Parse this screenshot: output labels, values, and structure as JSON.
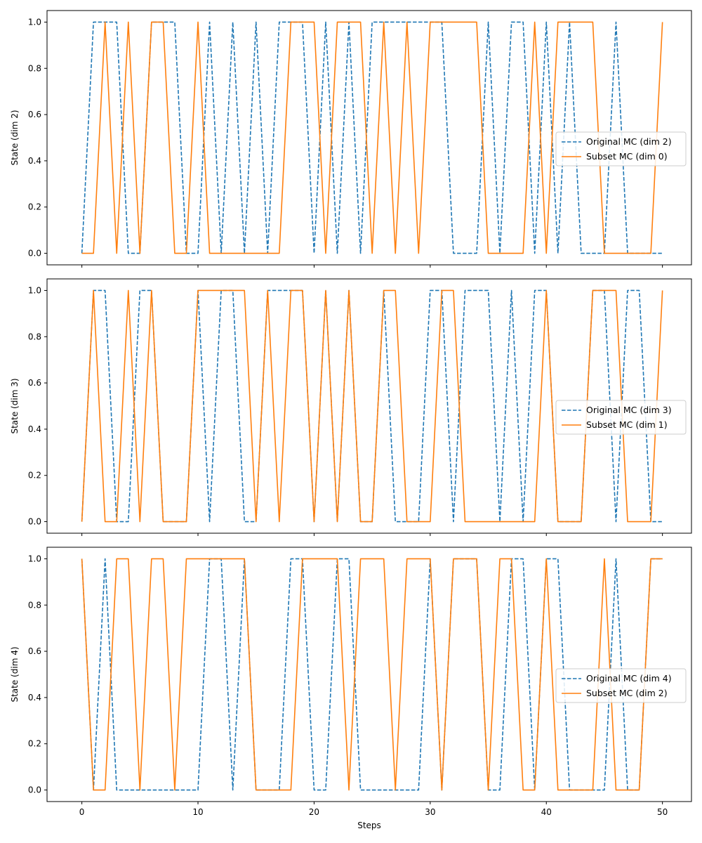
{
  "chart_data": [
    {
      "type": "line",
      "ylabel": "State (dim 2)",
      "xlabel": "",
      "xlim": [
        -3,
        52.5
      ],
      "ylim": [
        -0.05,
        1.05
      ],
      "xticks": [
        0,
        10,
        20,
        30,
        40,
        50
      ],
      "yticks": [
        0.0,
        0.2,
        0.4,
        0.6,
        0.8,
        1.0
      ],
      "ytick_labels": [
        "0.0",
        "0.2",
        "0.4",
        "0.6",
        "0.8",
        "1.0"
      ],
      "show_xtick_labels": false,
      "legend_position": "center-right",
      "x": [
        0,
        1,
        2,
        3,
        4,
        5,
        6,
        7,
        8,
        9,
        10,
        11,
        12,
        13,
        14,
        15,
        16,
        17,
        18,
        19,
        20,
        21,
        22,
        23,
        24,
        25,
        26,
        27,
        28,
        29,
        30,
        31,
        32,
        33,
        34,
        35,
        36,
        37,
        38,
        39,
        40,
        41,
        42,
        43,
        44,
        45,
        46,
        47,
        48,
        49,
        50
      ],
      "series": [
        {
          "name": "Original MC (dim 2)",
          "color": "#1f77b4",
          "style": "dashed",
          "values": [
            0,
            1,
            1,
            1,
            0,
            0,
            1,
            1,
            1,
            0,
            0,
            1,
            0,
            1,
            0,
            1,
            0,
            1,
            1,
            1,
            0,
            1,
            0,
            1,
            0,
            1,
            1,
            1,
            1,
            1,
            1,
            1,
            0,
            0,
            0,
            1,
            0,
            1,
            1,
            0,
            1,
            0,
            1,
            0,
            0,
            0,
            1,
            0,
            0,
            0,
            0
          ]
        },
        {
          "name": "Subset MC (dim 0)",
          "color": "#ff7f0e",
          "style": "solid",
          "values": [
            0,
            0,
            1,
            0,
            1,
            0,
            1,
            1,
            0,
            0,
            1,
            0,
            0,
            0,
            0,
            0,
            0,
            0,
            1,
            1,
            1,
            0,
            1,
            1,
            1,
            0,
            1,
            0,
            1,
            0,
            1,
            1,
            1,
            1,
            1,
            0,
            0,
            0,
            0,
            1,
            0,
            1,
            1,
            1,
            1,
            0,
            0,
            0,
            0,
            0,
            1
          ]
        }
      ]
    },
    {
      "type": "line",
      "ylabel": "State (dim 3)",
      "xlabel": "",
      "xlim": [
        -3,
        52.5
      ],
      "ylim": [
        -0.05,
        1.05
      ],
      "xticks": [
        0,
        10,
        20,
        30,
        40,
        50
      ],
      "yticks": [
        0.0,
        0.2,
        0.4,
        0.6,
        0.8,
        1.0
      ],
      "ytick_labels": [
        "0.0",
        "0.2",
        "0.4",
        "0.6",
        "0.8",
        "1.0"
      ],
      "show_xtick_labels": false,
      "legend_position": "center-right",
      "x": [
        0,
        1,
        2,
        3,
        4,
        5,
        6,
        7,
        8,
        9,
        10,
        11,
        12,
        13,
        14,
        15,
        16,
        17,
        18,
        19,
        20,
        21,
        22,
        23,
        24,
        25,
        26,
        27,
        28,
        29,
        30,
        31,
        32,
        33,
        34,
        35,
        36,
        37,
        38,
        39,
        40,
        41,
        42,
        43,
        44,
        45,
        46,
        47,
        48,
        49,
        50
      ],
      "series": [
        {
          "name": "Original MC (dim 3)",
          "color": "#1f77b4",
          "style": "dashed",
          "values": [
            0,
            1,
            1,
            0,
            0,
            1,
            1,
            0,
            0,
            0,
            1,
            0,
            1,
            1,
            0,
            0,
            1,
            1,
            1,
            1,
            0,
            1,
            0,
            1,
            0,
            0,
            1,
            0,
            0,
            0,
            1,
            1,
            0,
            1,
            1,
            1,
            0,
            1,
            0,
            1,
            1,
            0,
            0,
            0,
            1,
            1,
            0,
            1,
            1,
            0,
            0
          ]
        },
        {
          "name": "Subset MC (dim 1)",
          "color": "#ff7f0e",
          "style": "solid",
          "values": [
            0,
            1,
            0,
            0,
            1,
            0,
            1,
            0,
            0,
            0,
            1,
            1,
            1,
            1,
            1,
            0,
            1,
            0,
            1,
            1,
            0,
            1,
            0,
            1,
            0,
            0,
            1,
            1,
            0,
            0,
            0,
            1,
            1,
            0,
            0,
            0,
            0,
            0,
            0,
            0,
            1,
            0,
            0,
            0,
            1,
            1,
            1,
            0,
            0,
            0,
            1
          ]
        }
      ]
    },
    {
      "type": "line",
      "ylabel": "State (dim 4)",
      "xlabel": "Steps",
      "xlim": [
        -3,
        52.5
      ],
      "ylim": [
        -0.05,
        1.05
      ],
      "xticks": [
        0,
        10,
        20,
        30,
        40,
        50
      ],
      "xtick_labels": [
        "0",
        "10",
        "20",
        "30",
        "40",
        "50"
      ],
      "yticks": [
        0.0,
        0.2,
        0.4,
        0.6,
        0.8,
        1.0
      ],
      "ytick_labels": [
        "0.0",
        "0.2",
        "0.4",
        "0.6",
        "0.8",
        "1.0"
      ],
      "show_xtick_labels": true,
      "legend_position": "center-right",
      "x": [
        0,
        1,
        2,
        3,
        4,
        5,
        6,
        7,
        8,
        9,
        10,
        11,
        12,
        13,
        14,
        15,
        16,
        17,
        18,
        19,
        20,
        21,
        22,
        23,
        24,
        25,
        26,
        27,
        28,
        29,
        30,
        31,
        32,
        33,
        34,
        35,
        36,
        37,
        38,
        39,
        40,
        41,
        42,
        43,
        44,
        45,
        46,
        47,
        48,
        49,
        50
      ],
      "series": [
        {
          "name": "Original MC (dim 4)",
          "color": "#1f77b4",
          "style": "dashed",
          "values": [
            1,
            0,
            1,
            0,
            0,
            0,
            0,
            0,
            0,
            0,
            0,
            1,
            1,
            0,
            1,
            0,
            0,
            0,
            1,
            1,
            0,
            0,
            1,
            1,
            0,
            0,
            0,
            0,
            0,
            0,
            1,
            0,
            1,
            1,
            1,
            0,
            0,
            1,
            1,
            0,
            1,
            1,
            0,
            0,
            0,
            0,
            1,
            0,
            0,
            1,
            1
          ]
        },
        {
          "name": "Subset MC (dim 2)",
          "color": "#ff7f0e",
          "style": "solid",
          "values": [
            1,
            0,
            0,
            1,
            1,
            0,
            1,
            1,
            0,
            1,
            1,
            1,
            1,
            1,
            1,
            0,
            0,
            0,
            0,
            1,
            1,
            1,
            1,
            0,
            1,
            1,
            1,
            0,
            1,
            1,
            1,
            0,
            1,
            1,
            1,
            0,
            1,
            1,
            0,
            0,
            1,
            0,
            0,
            0,
            0,
            1,
            0,
            0,
            0,
            1,
            1
          ]
        }
      ]
    }
  ]
}
